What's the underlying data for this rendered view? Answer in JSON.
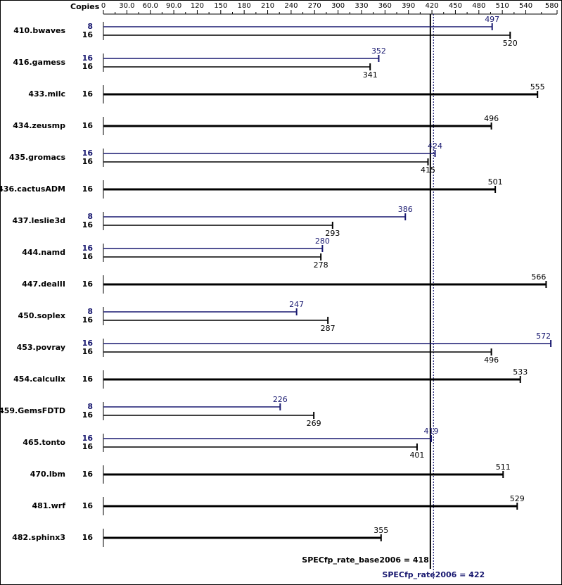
{
  "chart_data": {
    "type": "bar",
    "axis_label": "Copies",
    "categories": [
      "410.bwaves",
      "416.gamess",
      "433.milc",
      "434.zeusmp",
      "435.gromacs",
      "436.cactusADM",
      "437.leslie3d",
      "444.namd",
      "447.dealII",
      "450.soplex",
      "453.povray",
      "454.calculix",
      "459.GemsFDTD",
      "465.tonto",
      "470.lbm",
      "481.wrf",
      "482.sphinx3"
    ],
    "series": [
      {
        "color": "#191970",
        "copies": [
          8,
          16,
          null,
          null,
          16,
          null,
          8,
          16,
          null,
          8,
          16,
          null,
          8,
          16,
          null,
          null,
          null
        ],
        "values": [
          497,
          352,
          null,
          null,
          424,
          null,
          386,
          280,
          null,
          247,
          572,
          null,
          226,
          419,
          null,
          null,
          null
        ]
      },
      {
        "color": "#000000",
        "copies": [
          16,
          16,
          16,
          16,
          16,
          16,
          16,
          16,
          16,
          16,
          16,
          16,
          16,
          16,
          16,
          16,
          16
        ],
        "values": [
          520,
          341,
          555,
          496,
          415,
          501,
          293,
          278,
          566,
          287,
          496,
          533,
          269,
          401,
          511,
          529,
          355
        ]
      }
    ],
    "xlim": [
      0,
      580
    ],
    "xticks": [
      0,
      {
        "value": 30,
        "label": "30.0"
      },
      {
        "value": 60,
        "label": "60.0"
      },
      {
        "value": 90,
        "label": "90.0"
      },
      120,
      150,
      180,
      210,
      240,
      270,
      300,
      330,
      360,
      390,
      420,
      450,
      480,
      510,
      540,
      580
    ],
    "annotations": [
      {
        "label": "SPECfp_rate_base2006 = 418",
        "value": 418,
        "color": "#000000"
      },
      {
        "label": "SPECfp_rate2006 = 422",
        "value": 422,
        "color": "#191970"
      }
    ]
  }
}
